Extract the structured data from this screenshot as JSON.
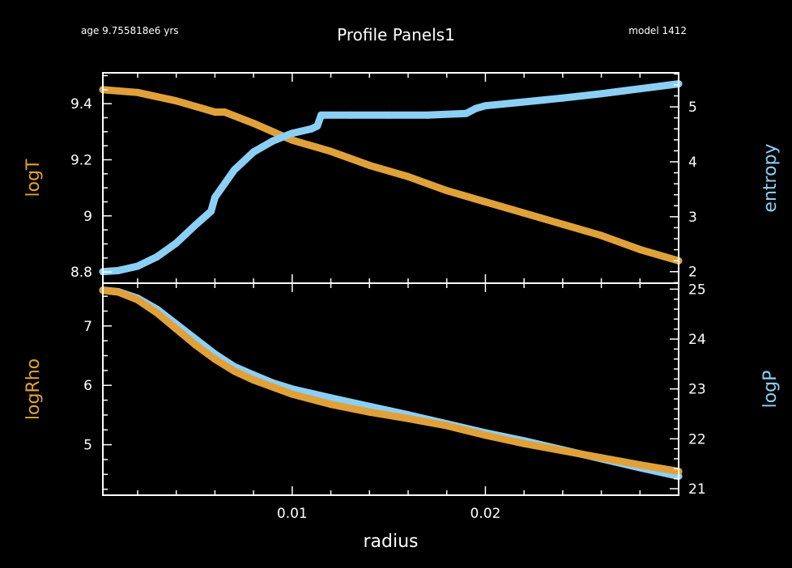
{
  "header": {
    "age_text": "age 9.755818e6 yrs",
    "title": "Profile Panels1",
    "model_text": "model 1412"
  },
  "colors": {
    "background": "#000000",
    "axis": "#ffffff",
    "orange": "#e0a13a",
    "blue": "#8ccff5"
  },
  "chart_data": [
    {
      "type": "line",
      "panel": "top",
      "xlabel": "",
      "xlim": [
        0.0002,
        0.03
      ],
      "x_ticks": [
        0.01,
        0.02
      ],
      "x_tick_labels": [],
      "left_axis": {
        "label": "logT",
        "lim": [
          8.76,
          9.51
        ],
        "ticks": [
          8.8,
          9,
          9.2,
          9.4
        ],
        "tick_labels": [
          "8.8",
          "9",
          "9.2",
          "9.4"
        ]
      },
      "right_axis": {
        "label": "entropy",
        "lim": [
          1.79,
          5.62
        ],
        "ticks": [
          2,
          3,
          4,
          5
        ],
        "tick_labels": [
          "2",
          "3",
          "4",
          "5"
        ]
      },
      "series": [
        {
          "name": "logT",
          "axis": "left",
          "color": "#e0a13a",
          "x": [
            0.0002,
            0.002,
            0.004,
            0.006,
            0.0065,
            0.008,
            0.01,
            0.012,
            0.014,
            0.016,
            0.018,
            0.02,
            0.022,
            0.024,
            0.026,
            0.028,
            0.03
          ],
          "y": [
            9.45,
            9.44,
            9.41,
            9.37,
            9.37,
            9.33,
            9.27,
            9.23,
            9.18,
            9.14,
            9.09,
            9.05,
            9.01,
            8.97,
            8.93,
            8.88,
            8.84
          ]
        },
        {
          "name": "entropy",
          "axis": "right",
          "color": "#8ccff5",
          "x": [
            0.0002,
            0.001,
            0.002,
            0.003,
            0.004,
            0.005,
            0.0058,
            0.006,
            0.007,
            0.008,
            0.009,
            0.0095,
            0.01,
            0.011,
            0.0113,
            0.0115,
            0.013,
            0.015,
            0.017,
            0.019,
            0.0195,
            0.02,
            0.022,
            0.024,
            0.026,
            0.028,
            0.03
          ],
          "y": [
            2.0,
            2.02,
            2.1,
            2.27,
            2.52,
            2.85,
            3.1,
            3.35,
            3.85,
            4.18,
            4.38,
            4.45,
            4.52,
            4.6,
            4.65,
            4.85,
            4.85,
            4.85,
            4.85,
            4.88,
            4.97,
            5.02,
            5.09,
            5.16,
            5.24,
            5.33,
            5.42
          ]
        }
      ]
    },
    {
      "type": "line",
      "panel": "bottom",
      "xlabel": "radius",
      "xlim": [
        0.0002,
        0.03
      ],
      "x_ticks": [
        0.01,
        0.02
      ],
      "x_tick_labels": [
        "0.01",
        "0.02"
      ],
      "left_axis": {
        "label": "logRho",
        "lim": [
          4.15,
          7.72
        ],
        "ticks": [
          5,
          6,
          7
        ],
        "tick_labels": [
          "5",
          "6",
          "7"
        ]
      },
      "right_axis": {
        "label": "logP",
        "lim": [
          20.87,
          25.12
        ],
        "ticks": [
          21,
          22,
          23,
          24,
          25
        ],
        "tick_labels": [
          "21",
          "22",
          "23",
          "24",
          "25"
        ]
      },
      "series": [
        {
          "name": "logP",
          "axis": "right",
          "color": "#8ccff5",
          "x": [
            0.0002,
            0.001,
            0.002,
            0.003,
            0.004,
            0.005,
            0.006,
            0.007,
            0.008,
            0.009,
            0.01,
            0.012,
            0.014,
            0.016,
            0.018,
            0.02,
            0.022,
            0.024,
            0.026,
            0.028,
            0.03
          ],
          "y": [
            24.98,
            24.95,
            24.82,
            24.6,
            24.3,
            24.0,
            23.7,
            23.45,
            23.28,
            23.12,
            23.0,
            22.82,
            22.65,
            22.48,
            22.3,
            22.12,
            21.96,
            21.78,
            21.6,
            21.42,
            21.25
          ]
        },
        {
          "name": "logRho",
          "axis": "left",
          "color": "#e0a13a",
          "x": [
            0.0002,
            0.001,
            0.002,
            0.003,
            0.004,
            0.005,
            0.006,
            0.007,
            0.008,
            0.009,
            0.01,
            0.012,
            0.014,
            0.016,
            0.018,
            0.02,
            0.022,
            0.024,
            0.026,
            0.028,
            0.03
          ],
          "y": [
            7.6,
            7.57,
            7.44,
            7.22,
            6.95,
            6.68,
            6.44,
            6.24,
            6.09,
            5.97,
            5.85,
            5.68,
            5.55,
            5.44,
            5.32,
            5.16,
            5.02,
            4.9,
            4.78,
            4.66,
            4.55
          ]
        }
      ]
    }
  ]
}
